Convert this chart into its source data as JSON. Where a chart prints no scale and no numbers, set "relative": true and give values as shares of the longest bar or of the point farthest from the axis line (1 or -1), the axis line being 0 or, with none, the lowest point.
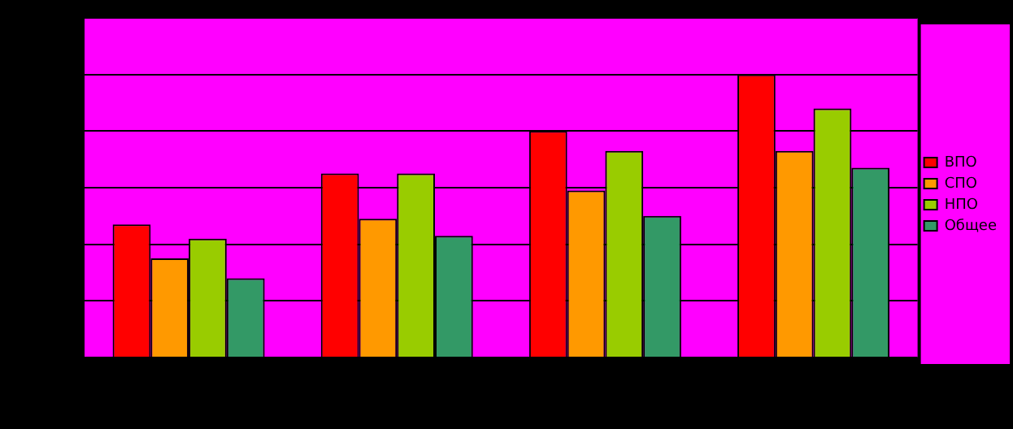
{
  "chart_data": {
    "type": "bar",
    "relative": true,
    "categories": [
      null,
      null,
      null,
      null
    ],
    "grid": "y",
    "legend": "right",
    "series": [
      {
        "name": "ВПО",
        "color": "#ff0000",
        "values": [
          0.47,
          0.65,
          0.8,
          1
        ]
      },
      {
        "name": "СПО",
        "color": "#ff9900",
        "values": [
          0.35,
          0.49,
          0.59,
          0.73
        ]
      },
      {
        "name": "НПО",
        "color": "#99cc00",
        "values": [
          0.42,
          0.65,
          0.73,
          0.88
        ]
      },
      {
        "name": "Общее",
        "color": "#339966",
        "values": [
          0.28,
          0.43,
          0.5,
          0.67
        ]
      }
    ]
  }
}
